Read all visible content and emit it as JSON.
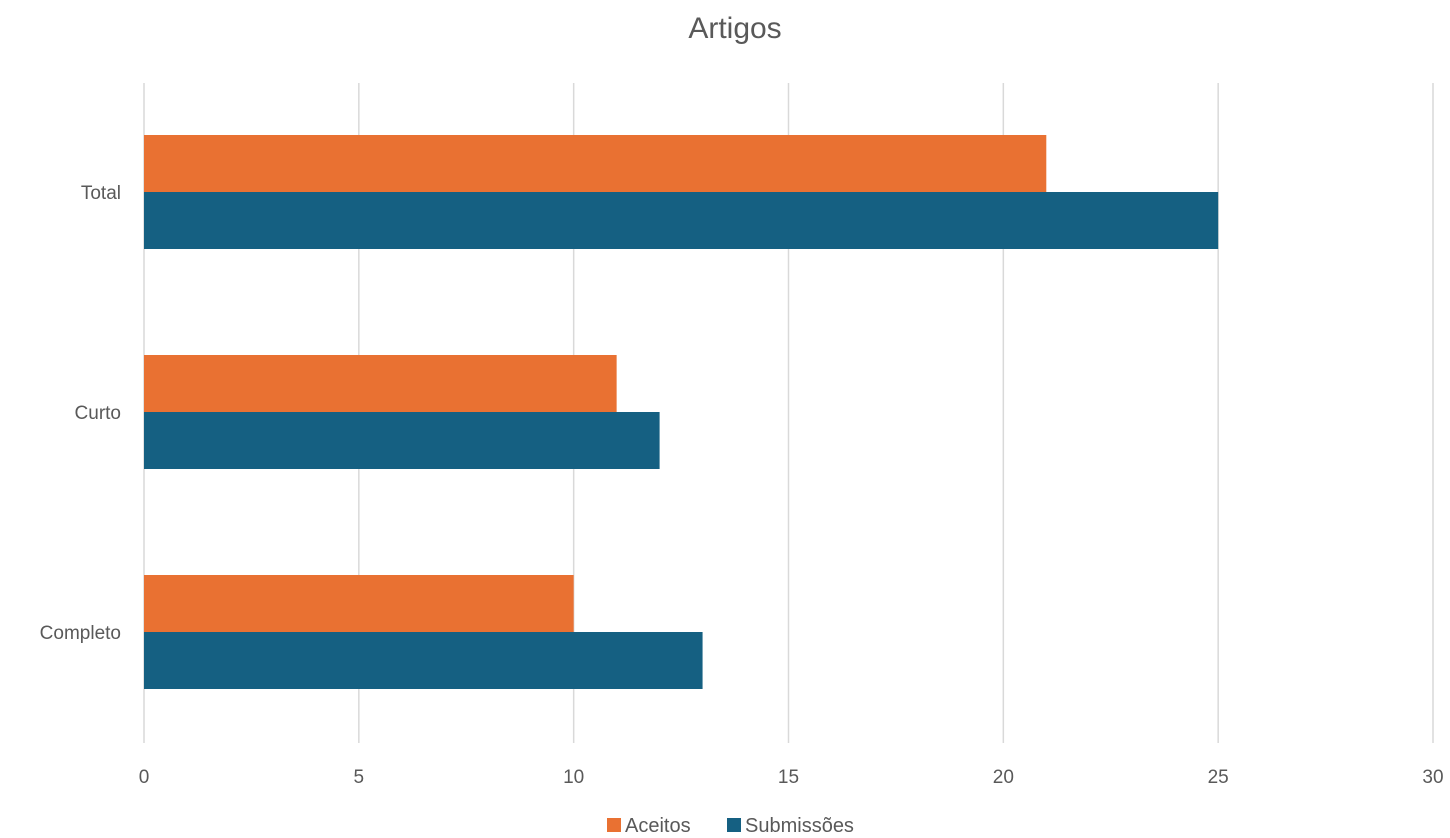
{
  "chart_data": {
    "type": "bar",
    "orientation": "horizontal",
    "title": "Artigos",
    "categories": [
      "Total",
      "Curto",
      "Completo"
    ],
    "series": [
      {
        "name": "Aceitos",
        "color": "#E97132",
        "values": [
          21,
          11,
          10
        ]
      },
      {
        "name": "Submissões",
        "color": "#156082",
        "values": [
          25,
          12,
          13
        ]
      }
    ],
    "xlim": [
      0,
      30
    ],
    "xticks": [
      0,
      5,
      10,
      15,
      20,
      25,
      30
    ],
    "grid": true,
    "legend_position": "bottom"
  }
}
